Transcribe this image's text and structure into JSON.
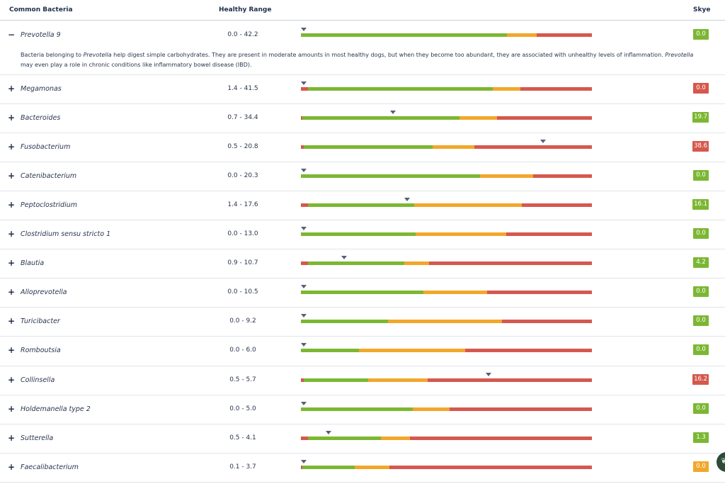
{
  "header": {
    "name_label": "Common Bacteria",
    "range_label": "Healthy Range",
    "subject_label": "Skye"
  },
  "colors": {
    "green": "#7cb733",
    "orange": "#f2a72b",
    "red": "#d5584e",
    "marker": "#55607a",
    "text": "#1f2d4a"
  },
  "expanded_description": {
    "part1": "Bacteria belonging to ",
    "italic1": "Prevotella",
    "part2": " help digest simple carbohydrates. They are present in moderate amounts in most healthy dogs, but when they become too abundant, they are associated with unhealthy levels of inflammation. ",
    "italic2": "Prevotella",
    "part3": " may even play a role in chronic conditions like inflammatory bowel disease (IBD)."
  },
  "rows": [
    {
      "toggle": "−",
      "name": "Prevotella 9",
      "range": "0.0 - 42.2",
      "value": "0.0",
      "status": "green",
      "marker": 0.01,
      "seg": [
        0,
        0.707,
        0.81,
        1
      ]
    },
    {
      "toggle": "+",
      "name": "Megamonas",
      "range": "1.4 - 41.5",
      "value": "0.0",
      "status": "red",
      "marker": 0.01,
      "seg": [
        0.024,
        0.66,
        0.755,
        1
      ]
    },
    {
      "toggle": "+",
      "name": "Bacteroides",
      "range": "0.7 - 34.4",
      "value": "19.7",
      "status": "green",
      "marker": 0.317,
      "seg": [
        0.006,
        0.545,
        0.675,
        1
      ]
    },
    {
      "toggle": "+",
      "name": "Fusobacterium",
      "range": "0.5 - 20.8",
      "value": "38.6",
      "status": "red",
      "marker": 0.832,
      "seg": [
        0.01,
        0.452,
        0.595,
        1
      ]
    },
    {
      "toggle": "+",
      "name": "Catenibacterium",
      "range": "0.0 - 20.3",
      "value": "0.0",
      "status": "green",
      "marker": 0.01,
      "seg": [
        0,
        0.615,
        0.798,
        1
      ]
    },
    {
      "toggle": "+",
      "name": "Peptoclostridium",
      "range": "1.4 - 17.6",
      "value": "16.1",
      "status": "green",
      "marker": 0.365,
      "seg": [
        0.025,
        0.39,
        0.76,
        1
      ]
    },
    {
      "toggle": "+",
      "name": "Clostridium sensu stricto 1",
      "range": "0.0 - 13.0",
      "value": "0.0",
      "status": "green",
      "marker": 0.01,
      "seg": [
        0,
        0.395,
        0.705,
        1
      ]
    },
    {
      "toggle": "+",
      "name": "Blautia",
      "range": "0.9 - 10.7",
      "value": "4.2",
      "status": "green",
      "marker": 0.148,
      "seg": [
        0.025,
        0.355,
        0.44,
        1
      ]
    },
    {
      "toggle": "+",
      "name": "Alloprevotella",
      "range": "0.0 - 10.5",
      "value": "0.0",
      "status": "green",
      "marker": 0.01,
      "seg": [
        0,
        0.42,
        0.64,
        1
      ]
    },
    {
      "toggle": "+",
      "name": "Turicibacter",
      "range": "0.0 - 9.2",
      "value": "0.0",
      "status": "green",
      "marker": 0.01,
      "seg": [
        0,
        0.3,
        0.69,
        1
      ]
    },
    {
      "toggle": "+",
      "name": "Romboutsia",
      "range": "0.0 - 6.0",
      "value": "0.0",
      "status": "green",
      "marker": 0.01,
      "seg": [
        0,
        0.2,
        0.565,
        1
      ]
    },
    {
      "toggle": "+",
      "name": "Collinsella",
      "range": "0.5 - 5.7",
      "value": "16.2",
      "status": "red",
      "marker": 0.645,
      "seg": [
        0.01,
        0.23,
        0.435,
        1
      ]
    },
    {
      "toggle": "+",
      "name": "Holdemanella type 2",
      "range": "0.0 - 5.0",
      "value": "0.0",
      "status": "green",
      "marker": 0.01,
      "seg": [
        0,
        0.385,
        0.51,
        1
      ]
    },
    {
      "toggle": "+",
      "name": "Sutterella",
      "range": "0.5 - 4.1",
      "value": "1.3",
      "status": "green",
      "marker": 0.095,
      "seg": [
        0.025,
        0.275,
        0.375,
        1
      ]
    },
    {
      "toggle": "+",
      "name": "Faecalibacterium",
      "range": "0.1 - 3.7",
      "value": "0.0",
      "status": "orange",
      "marker": 0.01,
      "seg": [
        0.004,
        0.185,
        0.305,
        1
      ]
    }
  ]
}
